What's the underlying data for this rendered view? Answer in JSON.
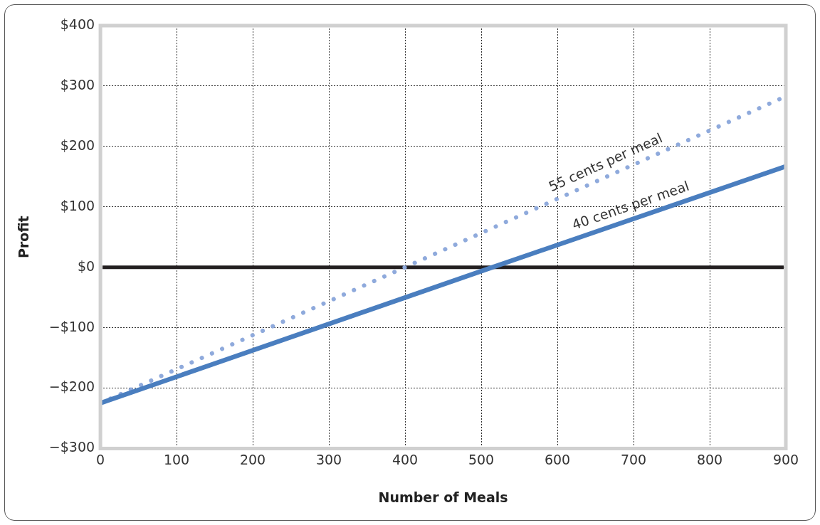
{
  "chart_data": {
    "type": "line",
    "xlabel": "Number of Meals",
    "ylabel": "Profit",
    "xlim": [
      0,
      900
    ],
    "xticks": [
      0,
      100,
      200,
      300,
      400,
      500,
      600,
      700,
      800,
      900
    ],
    "ylim": [
      -300,
      400
    ],
    "yticks": [
      {
        "value": -300,
        "label": "−$300"
      },
      {
        "value": -200,
        "label": "−$200"
      },
      {
        "value": -100,
        "label": "−$100"
      },
      {
        "value": 0,
        "label": "$0"
      },
      {
        "value": 100,
        "label": "$100"
      },
      {
        "value": 200,
        "label": "$200"
      },
      {
        "value": 300,
        "label": "$300"
      },
      {
        "value": 400,
        "label": "$400"
      }
    ],
    "series": [
      {
        "name": "55 cents per meal",
        "color": "#8faadc",
        "x": [
          0,
          400,
          900
        ],
        "values": [
          -225,
          0,
          283
        ],
        "line_style": "dotted"
      },
      {
        "name": "40 cents per meal",
        "color": "#4a7ebf",
        "x": [
          0,
          515,
          900
        ],
        "values": [
          -225,
          0,
          167
        ],
        "line_style": "solid"
      }
    ],
    "ref_lines": [
      {
        "axis": "y",
        "value": 0,
        "color": "#231f20"
      }
    ],
    "grid": true,
    "legend": false,
    "marker": "none"
  }
}
